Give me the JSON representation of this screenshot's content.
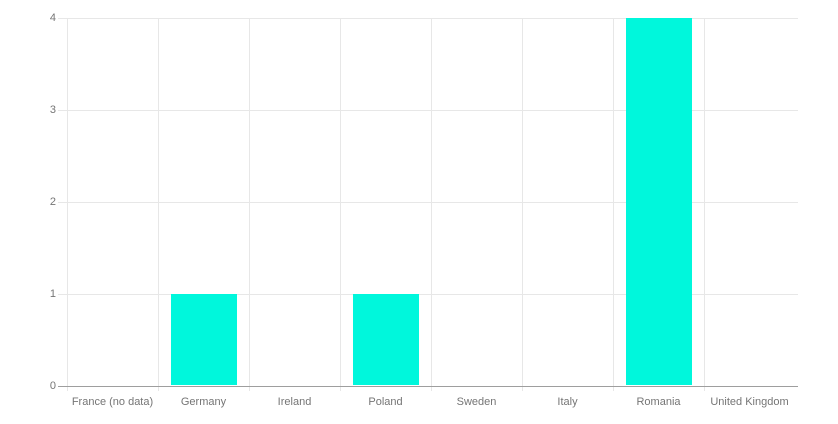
{
  "chart_data": {
    "type": "bar",
    "categories": [
      "France (no data)",
      "Germany",
      "Ireland",
      "Poland",
      "Sweden",
      "Italy",
      "Romania",
      "United Kingdom"
    ],
    "values": [
      0,
      1,
      0,
      1,
      0,
      0,
      4,
      0
    ],
    "title": "",
    "xlabel": "",
    "ylabel": "",
    "y_ticks": [
      "0",
      "1",
      "2",
      "3",
      "4"
    ],
    "ylim": [
      0,
      4
    ],
    "grid": true,
    "legend_position": "none",
    "colors": {
      "bar": "#00F7DC",
      "grid": "#e7e7e7",
      "axis": "#9e9e9e",
      "tick_label": "#757575",
      "background": "#ffffff"
    }
  }
}
